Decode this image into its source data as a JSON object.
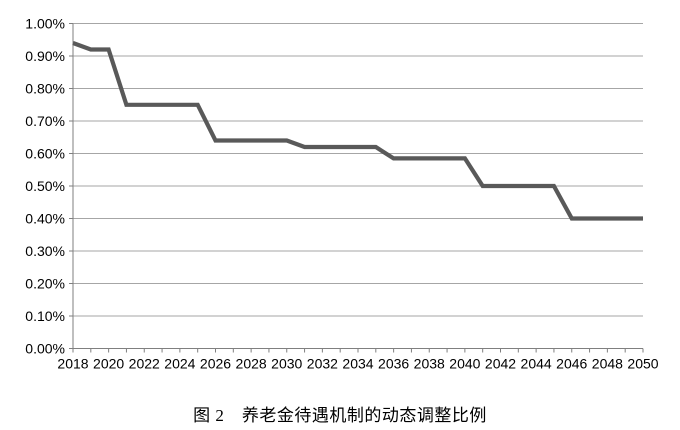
{
  "chart_data": {
    "type": "line",
    "caption": "图 2　养老金待遇机制的动态调整比例",
    "x": [
      2018,
      2019,
      2020,
      2021,
      2022,
      2023,
      2024,
      2025,
      2026,
      2027,
      2028,
      2029,
      2030,
      2031,
      2032,
      2033,
      2034,
      2035,
      2036,
      2037,
      2038,
      2039,
      2040,
      2041,
      2042,
      2043,
      2044,
      2045,
      2046,
      2047,
      2048,
      2049,
      2050
    ],
    "values": [
      0.94,
      0.92,
      0.92,
      0.75,
      0.75,
      0.75,
      0.75,
      0.75,
      0.64,
      0.64,
      0.64,
      0.64,
      0.64,
      0.62,
      0.62,
      0.62,
      0.62,
      0.62,
      0.585,
      0.585,
      0.585,
      0.585,
      0.585,
      0.5,
      0.5,
      0.5,
      0.5,
      0.5,
      0.4,
      0.4,
      0.4,
      0.4,
      0.4
    ],
    "unit": "percent",
    "xlim": [
      2018,
      2050
    ],
    "ylim": [
      0,
      1.0
    ],
    "grid": true,
    "legend": "none",
    "y_ticks": [
      {
        "v": 0.0,
        "label": "0.00%"
      },
      {
        "v": 0.1,
        "label": "0.10%"
      },
      {
        "v": 0.2,
        "label": "0.20%"
      },
      {
        "v": 0.3,
        "label": "0.30%"
      },
      {
        "v": 0.4,
        "label": "0.40%"
      },
      {
        "v": 0.5,
        "label": "0.50%"
      },
      {
        "v": 0.6,
        "label": "0.60%"
      },
      {
        "v": 0.7,
        "label": "0.70%"
      },
      {
        "v": 0.8,
        "label": "0.80%"
      },
      {
        "v": 0.9,
        "label": "0.90%"
      },
      {
        "v": 1.0,
        "label": "1.00%"
      }
    ],
    "x_ticks": [
      {
        "v": 2018,
        "label": "2018"
      },
      {
        "v": 2020,
        "label": "2020"
      },
      {
        "v": 2022,
        "label": "2022"
      },
      {
        "v": 2024,
        "label": "2024"
      },
      {
        "v": 2026,
        "label": "2026"
      },
      {
        "v": 2028,
        "label": "2028"
      },
      {
        "v": 2030,
        "label": "2030"
      },
      {
        "v": 2032,
        "label": "2032"
      },
      {
        "v": 2034,
        "label": "2034"
      },
      {
        "v": 2036,
        "label": "2036"
      },
      {
        "v": 2038,
        "label": "2038"
      },
      {
        "v": 2040,
        "label": "2040"
      },
      {
        "v": 2042,
        "label": "2042"
      },
      {
        "v": 2044,
        "label": "2044"
      },
      {
        "v": 2046,
        "label": "2046"
      },
      {
        "v": 2048,
        "label": "2048"
      },
      {
        "v": 2050,
        "label": "2050"
      }
    ],
    "colors": {
      "line": "#595959",
      "gridline": "#A6A6A6",
      "axis": "#7F7F7F",
      "text": "#000000",
      "background": "#FFFFFF"
    }
  }
}
